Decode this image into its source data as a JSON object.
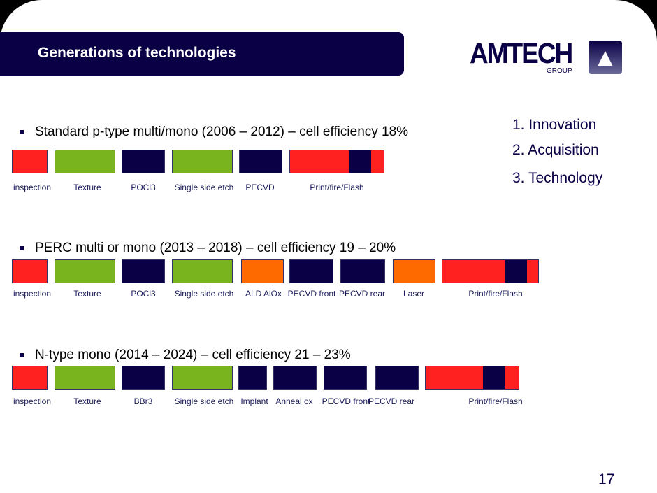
{
  "title": "Generations of technologies",
  "logo": {
    "name": "AMTECH",
    "sub": "GROUP"
  },
  "list": [
    "1.  Innovation",
    "2.  Acquisition",
    "3.  Technology"
  ],
  "page_number": "17",
  "colors": {
    "red": "#ff2020",
    "green": "#79b41e",
    "navy": "#0a0046",
    "orange": "#ff6a00"
  },
  "rows": [
    {
      "heading": "Standard p-type multi/mono (2006 – 2012) – cell efficiency 18%",
      "steps": [
        "inspection",
        "Texture",
        "POCl3",
        "Single side etch",
        "PECVD",
        "Print/fire/Flash"
      ]
    },
    {
      "heading": "PERC multi or mono (2013 – 2018) – cell efficiency 19 – 20%",
      "steps": [
        "inspection",
        "Texture",
        "POCl3",
        "Single side etch",
        "ALD AlOx",
        "PECVD front",
        "PECVD rear",
        "Laser",
        "Print/fire/Flash"
      ]
    },
    {
      "heading": "N-type mono (2014 – 2024) – cell efficiency 21 – 23%",
      "steps": [
        "inspection",
        "Texture",
        "BBr3",
        "Single side etch",
        "Implant",
        "Anneal ox",
        "PECVD front",
        "PECVD rear",
        "Print/fire/Flash"
      ]
    }
  ]
}
